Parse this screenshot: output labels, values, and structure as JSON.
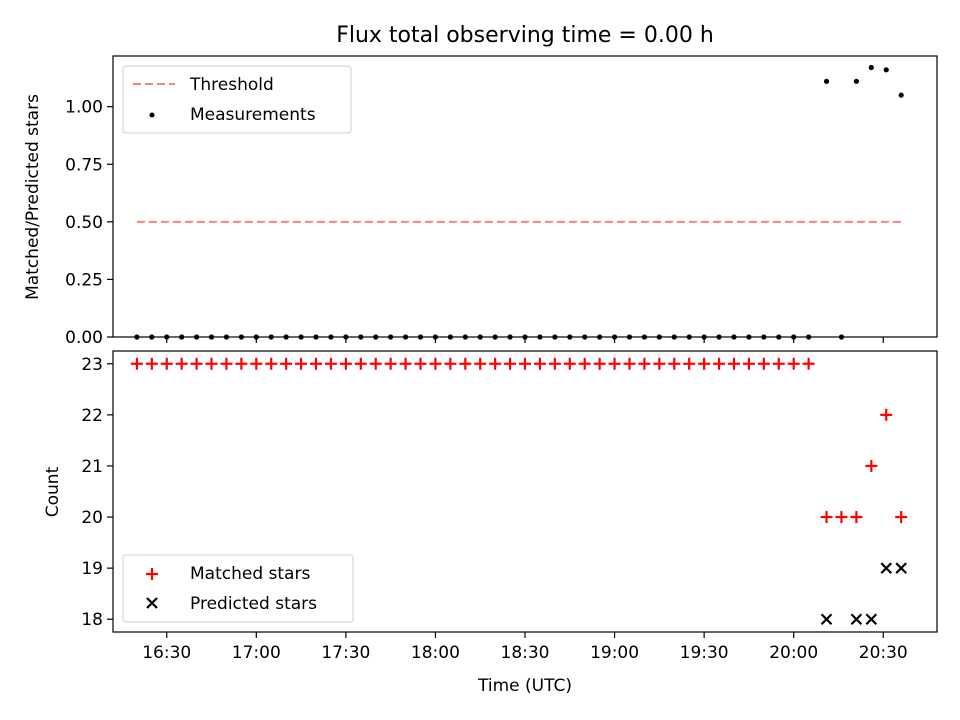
{
  "chart_data": [
    {
      "type": "scatter",
      "title": "Flux total observing time = 0.00 h",
      "xlabel": "",
      "ylabel": "Matched/Predicted stars",
      "x_range": [
        "16:12",
        "20:48"
      ],
      "ylim": [
        0,
        1.22
      ],
      "yticks": [
        0.0,
        0.25,
        0.5,
        0.75,
        1.0
      ],
      "ytick_labels": [
        "0.00",
        "0.25",
        "0.50",
        "0.75",
        "1.00"
      ],
      "legend_position": "upper-left",
      "series": [
        {
          "name": "Threshold",
          "style": "dashed-line",
          "color": "#ff7f7f",
          "x": [
            "16:20",
            "20:36"
          ],
          "y": [
            0.5,
            0.5
          ]
        },
        {
          "name": "Measurements",
          "style": "dot",
          "color": "#000000",
          "x": [
            "16:20",
            "16:25",
            "16:30",
            "16:35",
            "16:40",
            "16:45",
            "16:50",
            "16:55",
            "17:00",
            "17:05",
            "17:10",
            "17:15",
            "17:20",
            "17:25",
            "17:30",
            "17:35",
            "17:40",
            "17:45",
            "17:50",
            "17:55",
            "18:00",
            "18:05",
            "18:10",
            "18:15",
            "18:20",
            "18:25",
            "18:30",
            "18:35",
            "18:40",
            "18:45",
            "18:50",
            "18:55",
            "19:00",
            "19:05",
            "19:10",
            "19:15",
            "19:20",
            "19:25",
            "19:30",
            "19:35",
            "19:40",
            "19:45",
            "19:50",
            "19:55",
            "20:00",
            "20:05",
            "20:11",
            "20:16",
            "20:21",
            "20:26",
            "20:31",
            "20:36"
          ],
          "y": [
            0,
            0,
            0,
            0,
            0,
            0,
            0,
            0,
            0,
            0,
            0,
            0,
            0,
            0,
            0,
            0,
            0,
            0,
            0,
            0,
            0,
            0,
            0,
            0,
            0,
            0,
            0,
            0,
            0,
            0,
            0,
            0,
            0,
            0,
            0,
            0,
            0,
            0,
            0,
            0,
            0,
            0,
            0,
            0,
            0,
            0,
            1.11,
            0,
            1.11,
            1.17,
            1.16,
            1.05
          ]
        }
      ]
    },
    {
      "type": "scatter",
      "title": "",
      "xlabel": "Time (UTC)",
      "ylabel": "Count",
      "x_range": [
        "16:12",
        "20:48"
      ],
      "ylim": [
        17.75,
        23.25
      ],
      "yticks": [
        18,
        19,
        20,
        21,
        22,
        23
      ],
      "ytick_labels": [
        "18",
        "19",
        "20",
        "21",
        "22",
        "23"
      ],
      "xticks": [
        "16:30",
        "17:00",
        "17:30",
        "18:00",
        "18:30",
        "19:00",
        "19:30",
        "20:00",
        "20:30"
      ],
      "legend_position": "lower-left",
      "series": [
        {
          "name": "Matched stars",
          "style": "plus",
          "color": "#ff0000",
          "x": [
            "16:20",
            "16:25",
            "16:30",
            "16:35",
            "16:40",
            "16:45",
            "16:50",
            "16:55",
            "17:00",
            "17:05",
            "17:10",
            "17:15",
            "17:20",
            "17:25",
            "17:30",
            "17:35",
            "17:40",
            "17:45",
            "17:50",
            "17:55",
            "18:00",
            "18:05",
            "18:10",
            "18:15",
            "18:20",
            "18:25",
            "18:30",
            "18:35",
            "18:40",
            "18:45",
            "18:50",
            "18:55",
            "19:00",
            "19:05",
            "19:10",
            "19:15",
            "19:20",
            "19:25",
            "19:30",
            "19:35",
            "19:40",
            "19:45",
            "19:50",
            "19:55",
            "20:00",
            "20:05",
            "20:11",
            "20:16",
            "20:21",
            "20:26",
            "20:31",
            "20:36"
          ],
          "y": [
            23,
            23,
            23,
            23,
            23,
            23,
            23,
            23,
            23,
            23,
            23,
            23,
            23,
            23,
            23,
            23,
            23,
            23,
            23,
            23,
            23,
            23,
            23,
            23,
            23,
            23,
            23,
            23,
            23,
            23,
            23,
            23,
            23,
            23,
            23,
            23,
            23,
            23,
            23,
            23,
            23,
            23,
            23,
            23,
            23,
            23,
            20,
            20,
            20,
            21,
            22,
            20
          ]
        },
        {
          "name": "Predicted stars",
          "style": "x",
          "color": "#000000",
          "x": [
            "20:11",
            "20:21",
            "20:26",
            "20:31",
            "20:36"
          ],
          "y": [
            18,
            18,
            18,
            19,
            19
          ]
        }
      ]
    }
  ]
}
